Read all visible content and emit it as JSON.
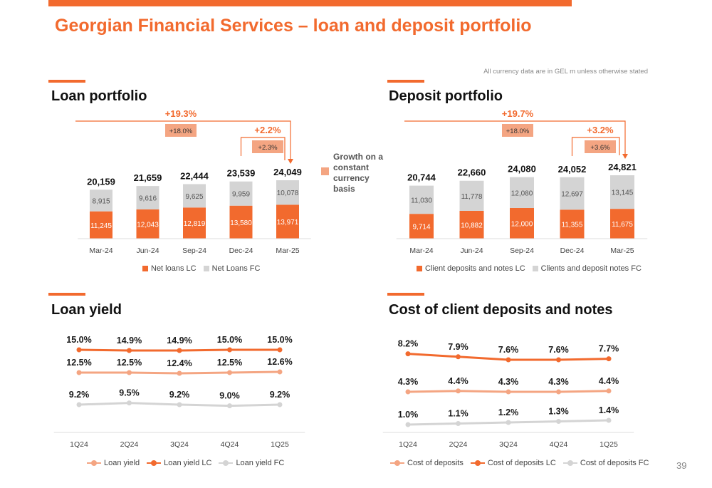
{
  "header": {
    "title": "Georgian Financial Services – loan and deposit portfolio",
    "note": "All currency data are in GEL m unless otherwise stated",
    "page_number": "39"
  },
  "colors": {
    "accent": "#f26a2e",
    "lc": "#f26a2e",
    "fc": "#d4d4d4",
    "light": "#f4a582"
  },
  "sections": {
    "loan_portfolio": "Loan portfolio",
    "deposit_portfolio": "Deposit portfolio",
    "loan_yield": "Loan yield",
    "cost_of_deposits": "Cost of client deposits and notes"
  },
  "side_legend": {
    "label": "Growth on a constant currency basis"
  },
  "chart_data": [
    {
      "id": "loans",
      "type": "bar",
      "stacked": true,
      "categories": [
        "Mar-24",
        "Jun-24",
        "Sep-24",
        "Dec-24",
        "Mar-25"
      ],
      "series": [
        {
          "name": "Net loans LC",
          "values": [
            11245,
            12043,
            12819,
            13580,
            13971
          ],
          "labels": [
            "11,245",
            "12,043",
            "12,819",
            "13,580",
            "13,971"
          ]
        },
        {
          "name": "Net Loans FC",
          "values": [
            8915,
            9616,
            9625,
            9959,
            10078
          ],
          "labels": [
            "8,915",
            "9,616",
            "9,625",
            "9,959",
            "10,078"
          ]
        }
      ],
      "totals": [
        "20,159",
        "21,659",
        "22,444",
        "23,539",
        "24,049"
      ],
      "annotations": {
        "yoy": "+19.3%",
        "yoy_cc": "+18.0%",
        "qoq": "+2.2%",
        "qoq_cc": "+2.3%"
      },
      "legend": "bottom"
    },
    {
      "id": "deposits",
      "type": "bar",
      "stacked": true,
      "categories": [
        "Mar-24",
        "Jun-24",
        "Sep-24",
        "Dec-24",
        "Mar-25"
      ],
      "series": [
        {
          "name": "Client deposits and notes LC",
          "values": [
            9714,
            10882,
            12000,
            11355,
            11675
          ],
          "labels": [
            "9,714",
            "10,882",
            "12,000",
            "11,355",
            "11,675"
          ]
        },
        {
          "name": "Clients and deposit notes FC",
          "values": [
            11030,
            11778,
            12080,
            12697,
            13145
          ],
          "labels": [
            "11,030",
            "11,778",
            "12,080",
            "12,697",
            "13,145"
          ]
        }
      ],
      "totals": [
        "20,744",
        "22,660",
        "24,080",
        "24,052",
        "24,821"
      ],
      "annotations": {
        "yoy": "+19.7%",
        "yoy_cc": "+18.0%",
        "qoq": "+3.2%",
        "qoq_cc": "+3.6%"
      },
      "legend": "bottom"
    },
    {
      "id": "loan_yield",
      "type": "line",
      "categories": [
        "1Q24",
        "2Q24",
        "3Q24",
        "4Q24",
        "1Q25"
      ],
      "series": [
        {
          "name": "Loan yield",
          "values": [
            12.5,
            12.5,
            12.4,
            12.5,
            12.6
          ],
          "labels": [
            "12.5%",
            "12.5%",
            "12.4%",
            "12.5%",
            "12.6%"
          ]
        },
        {
          "name": "Loan yield LC",
          "values": [
            15.0,
            14.9,
            14.9,
            15.0,
            15.0
          ],
          "labels": [
            "15.0%",
            "14.9%",
            "14.9%",
            "15.0%",
            "15.0%"
          ]
        },
        {
          "name": "Loan yield FC",
          "values": [
            9.2,
            9.5,
            9.2,
            9.0,
            9.2
          ],
          "labels": [
            "9.2%",
            "9.5%",
            "9.2%",
            "9.0%",
            "9.2%"
          ]
        }
      ],
      "legend": "bottom"
    },
    {
      "id": "cost_deposits",
      "type": "line",
      "categories": [
        "1Q24",
        "2Q24",
        "3Q24",
        "4Q24",
        "1Q25"
      ],
      "series": [
        {
          "name": "Cost of deposits",
          "values": [
            4.3,
            4.4,
            4.3,
            4.3,
            4.4
          ],
          "labels": [
            "4.3%",
            "4.4%",
            "4.3%",
            "4.3%",
            "4.4%"
          ]
        },
        {
          "name": "Cost of deposits LC",
          "values": [
            8.2,
            7.9,
            7.6,
            7.6,
            7.7
          ],
          "labels": [
            "8.2%",
            "7.9%",
            "7.6%",
            "7.6%",
            "7.7%"
          ]
        },
        {
          "name": "Cost of deposits FC",
          "values": [
            1.0,
            1.1,
            1.2,
            1.3,
            1.4
          ],
          "labels": [
            "1.0%",
            "1.1%",
            "1.2%",
            "1.3%",
            "1.4%"
          ]
        }
      ],
      "legend": "bottom"
    }
  ]
}
